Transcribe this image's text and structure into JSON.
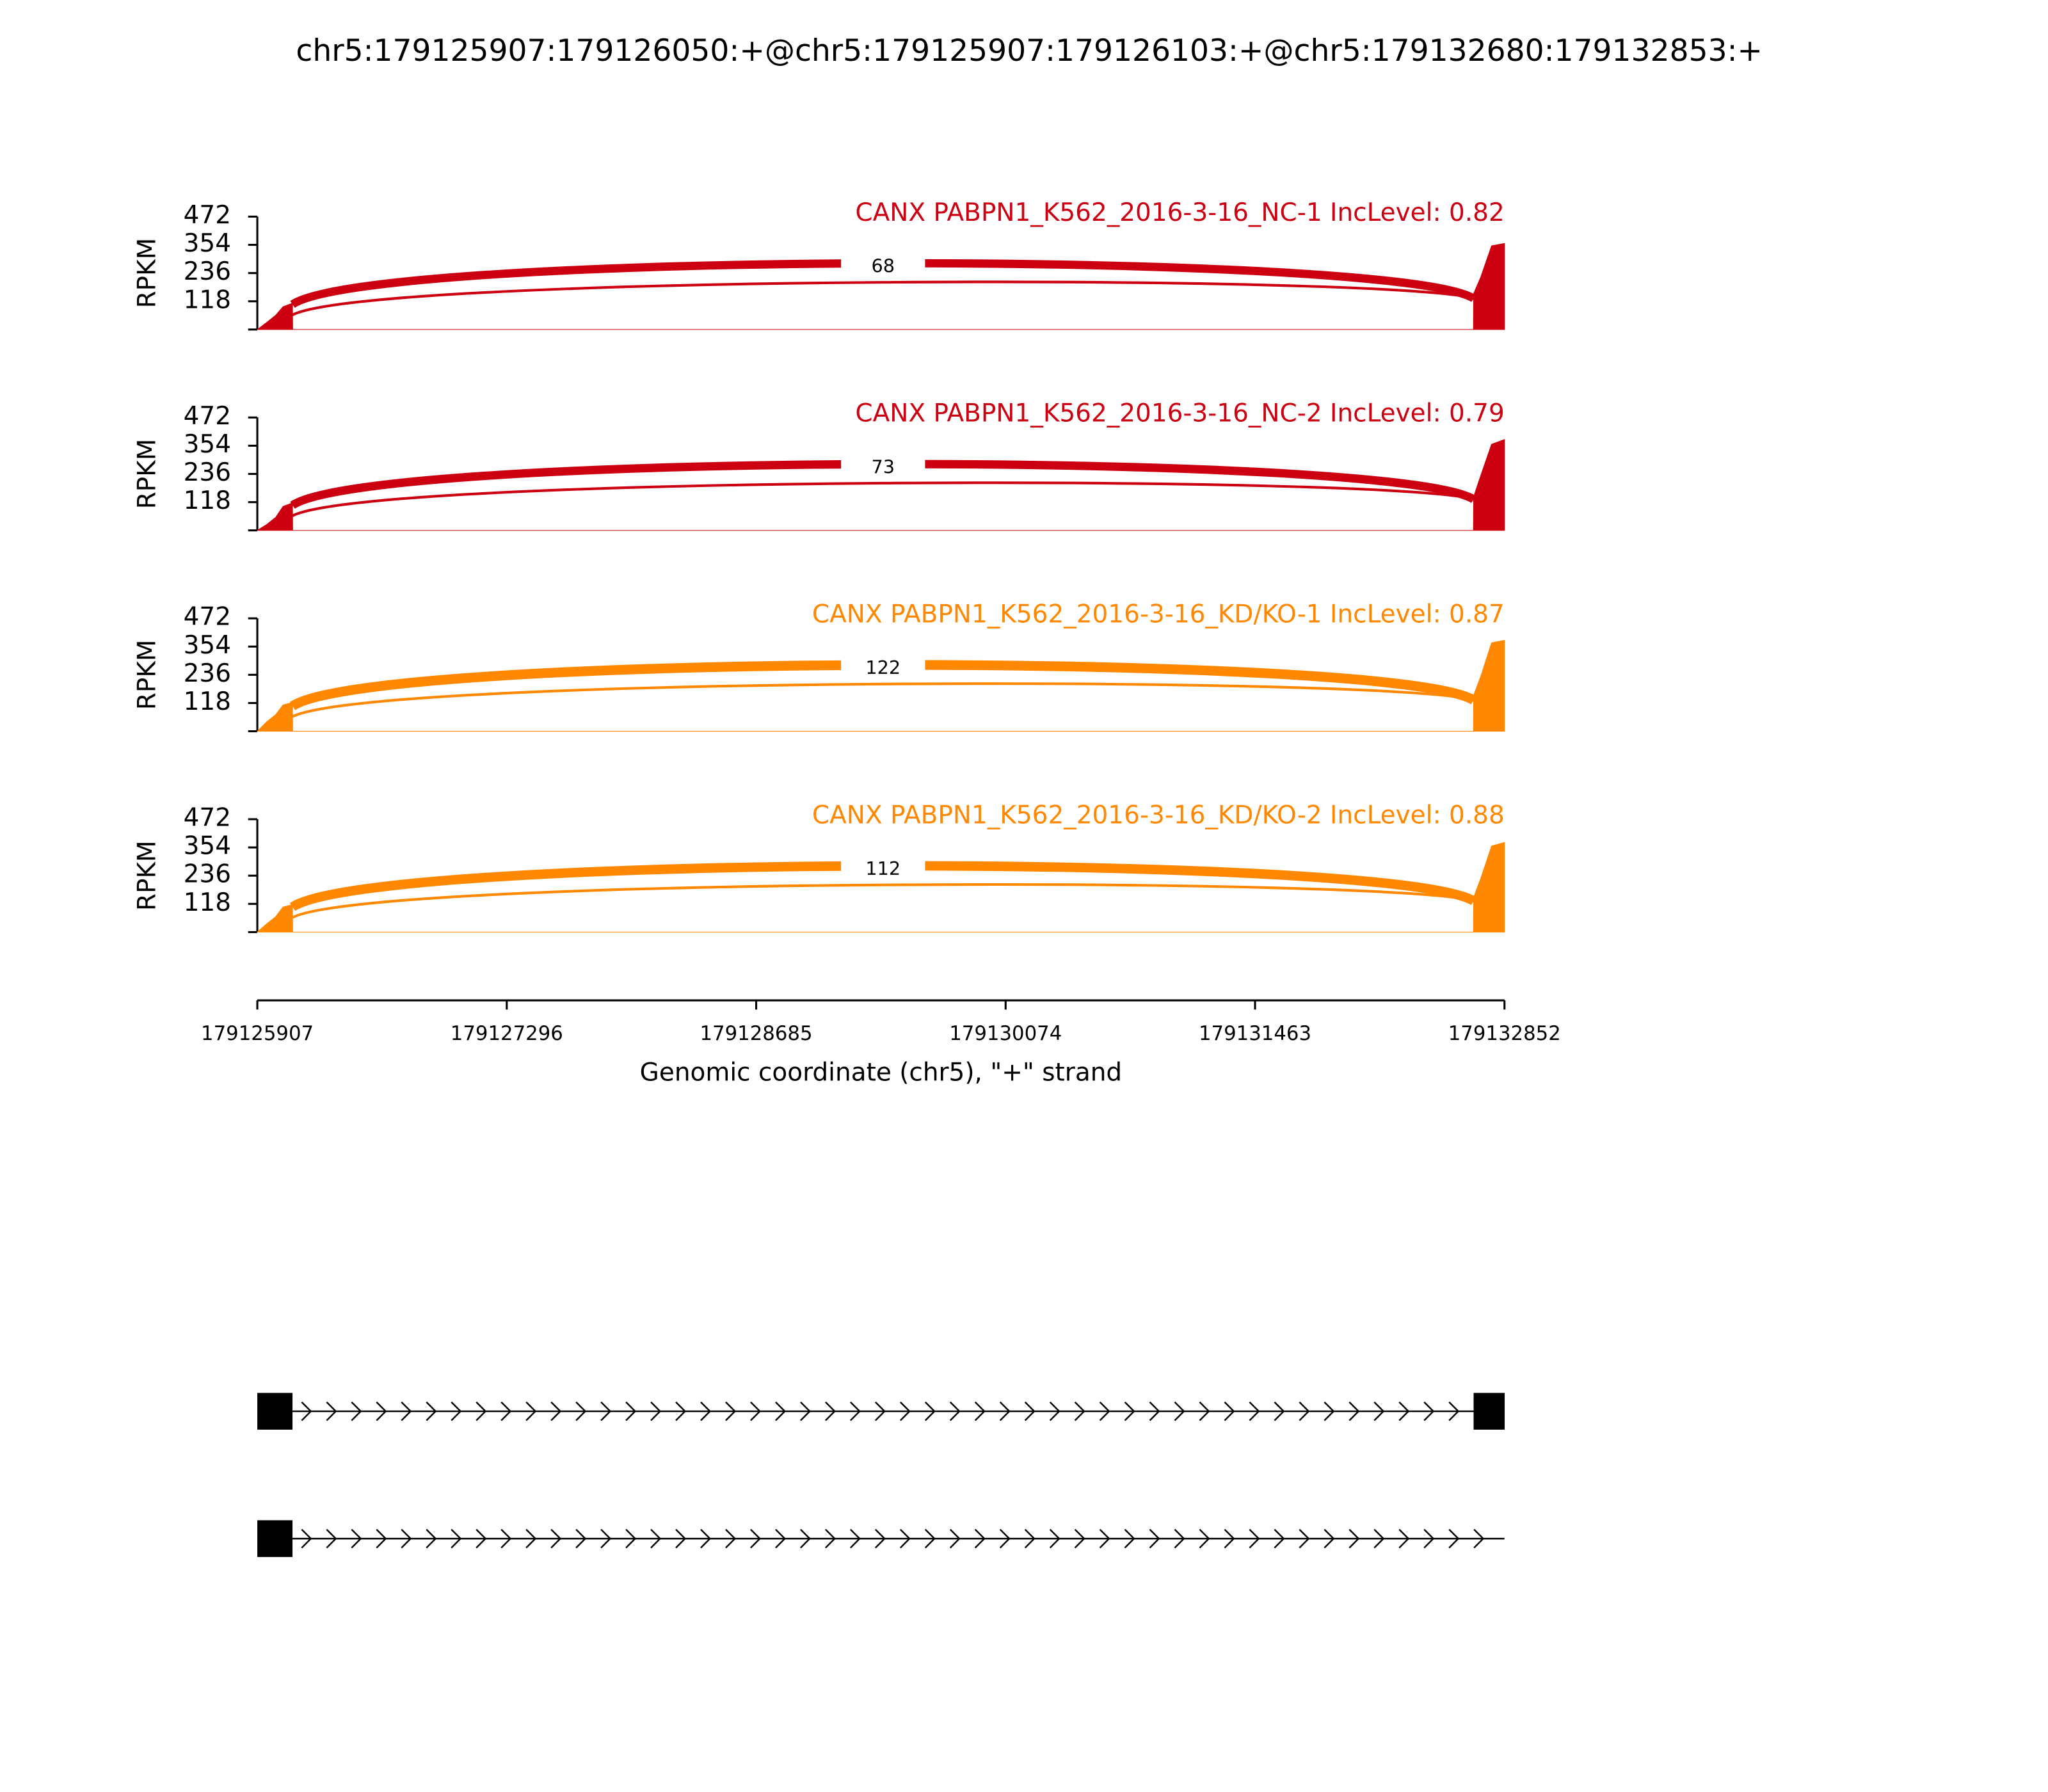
{
  "chart_data": {
    "type": "sashimi",
    "title": "chr5:179125907:179126050:+@chr5:179125907:179126103:+@chr5:179132680:179132853:+",
    "xlim": [
      179125907,
      179132852
    ],
    "xticks": [
      179125907,
      179127296,
      179128685,
      179130074,
      179131463,
      179132852
    ],
    "xlabel": "Genomic coordinate (chr5), \"+\" strand",
    "ylabel": "RPKM",
    "panels": [
      {
        "label": "CANX PABPN1_K562_2016-3-16_NC-1 IncLevel: 0.82",
        "color": "#cc0011",
        "ylim": [
          0,
          472
        ],
        "yticks": [
          118,
          236,
          354,
          472
        ],
        "coverage": {
          "x": [
            179125907,
            179125960,
            179126010,
            179126050,
            179126103,
            179126104,
            179132679,
            179132680,
            179132720,
            179132780,
            179132852
          ],
          "values": [
            0,
            30,
            60,
            95,
            110,
            0,
            0,
            150,
            220,
            350,
            360
          ]
        },
        "junctions": [
          {
            "start": 179126103,
            "end": 179132680,
            "count": 68
          }
        ]
      },
      {
        "label": "CANX PABPN1_K562_2016-3-16_NC-2 IncLevel: 0.79",
        "color": "#cc0011",
        "ylim": [
          0,
          472
        ],
        "yticks": [
          118,
          236,
          354,
          472
        ],
        "coverage": {
          "x": [
            179125907,
            179125960,
            179126010,
            179126050,
            179126103,
            179126104,
            179132679,
            179132680,
            179132720,
            179132780,
            179132852
          ],
          "values": [
            0,
            25,
            55,
            100,
            115,
            0,
            0,
            140,
            230,
            360,
            380
          ]
        },
        "junctions": [
          {
            "start": 179126103,
            "end": 179132680,
            "count": 73
          }
        ]
      },
      {
        "label": "CANX PABPN1_K562_2016-3-16_KD/KO-1 IncLevel: 0.87",
        "color": "#ff8800",
        "ylim": [
          0,
          472
        ],
        "yticks": [
          118,
          236,
          354,
          472
        ],
        "coverage": {
          "x": [
            179125907,
            179125960,
            179126010,
            179126050,
            179126103,
            179126104,
            179132679,
            179132680,
            179132720,
            179132780,
            179132852
          ],
          "values": [
            0,
            40,
            70,
            110,
            120,
            0,
            0,
            150,
            230,
            370,
            380
          ]
        },
        "junctions": [
          {
            "start": 179126103,
            "end": 179132680,
            "count": 122
          }
        ]
      },
      {
        "label": "CANX PABPN1_K562_2016-3-16_KD/KO-2 IncLevel: 0.88",
        "color": "#ff8800",
        "ylim": [
          0,
          472
        ],
        "yticks": [
          118,
          236,
          354,
          472
        ],
        "coverage": {
          "x": [
            179125907,
            179125960,
            179126010,
            179126050,
            179126103,
            179126104,
            179132679,
            179132680,
            179132720,
            179132780,
            179132852
          ],
          "values": [
            0,
            35,
            65,
            105,
            115,
            0,
            0,
            145,
            225,
            360,
            375
          ]
        },
        "junctions": [
          {
            "start": 179126103,
            "end": 179132680,
            "count": 112
          }
        ]
      }
    ],
    "isoforms": [
      {
        "exons": [
          [
            179125907,
            179126103
          ],
          [
            179132680,
            179132853
          ]
        ]
      },
      {
        "exons": [
          [
            179125907,
            179126103
          ]
        ]
      }
    ]
  }
}
